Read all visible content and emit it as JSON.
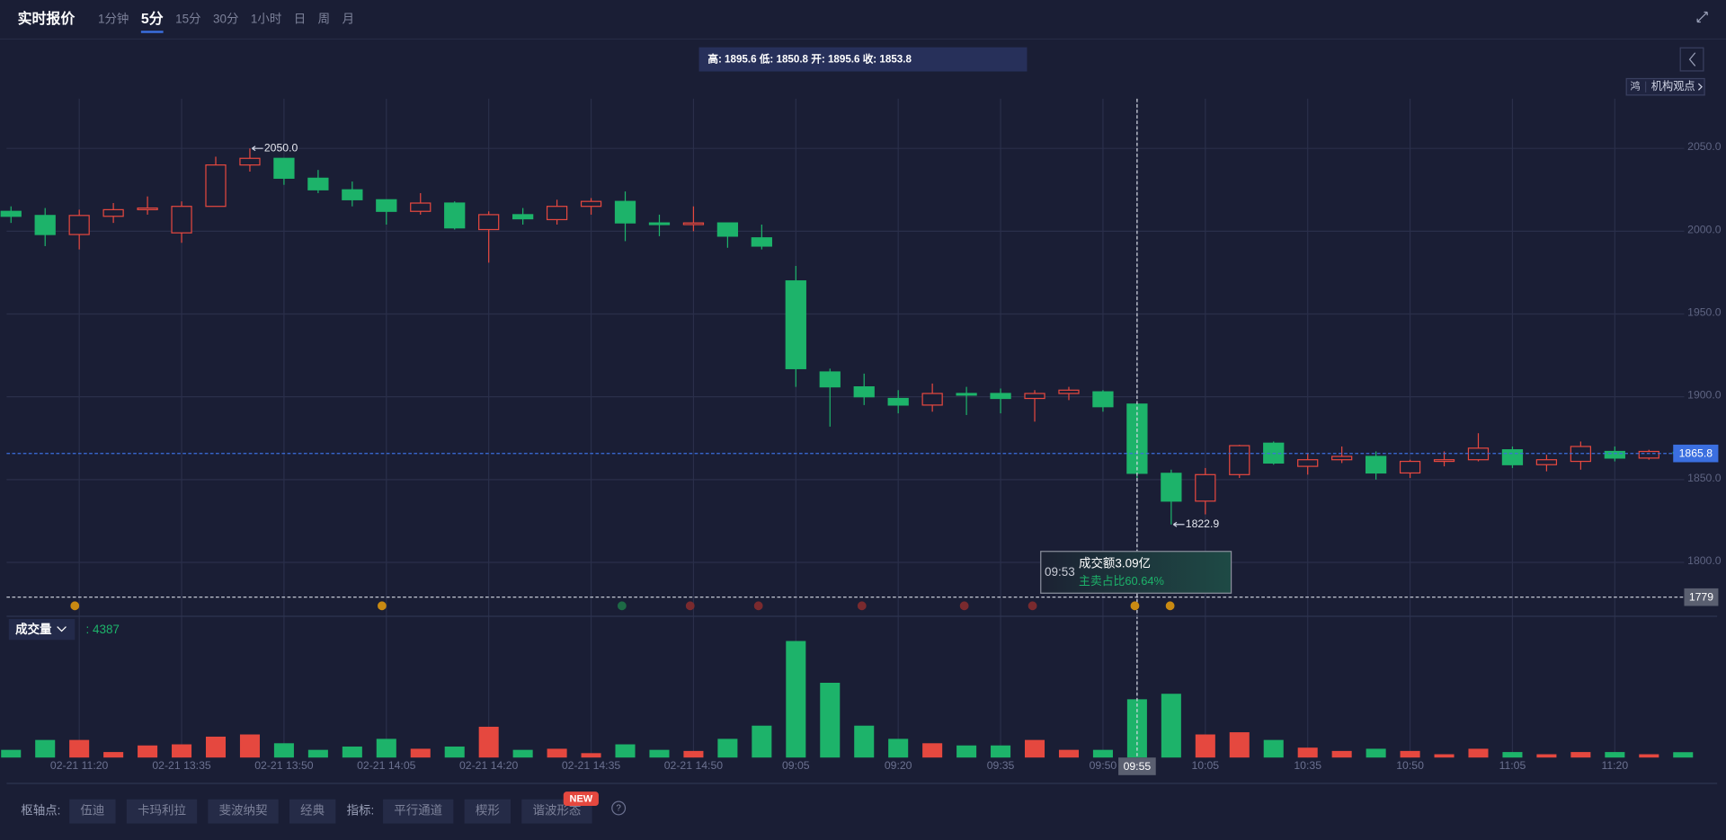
{
  "toolbar": {
    "title": "实时报价",
    "intervals": [
      "1分钟",
      "5分",
      "15分",
      "30分",
      "1小时",
      "日",
      "周",
      "月"
    ],
    "active": "5分"
  },
  "readout": "高: 1895.6 低: 1850.8 开: 1895.6 收: 1853.8",
  "side_panel": {
    "icon": "鸿",
    "label": "机构观点"
  },
  "chart_data": {
    "type": "candlestick",
    "categories": [
      null,
      null,
      "02-21 11:20",
      null,
      null,
      "02-21 13:35",
      null,
      null,
      "02-21 13:50",
      null,
      null,
      "02-21 14:05",
      null,
      null,
      "02-21 14:20",
      null,
      null,
      "02-21 14:35",
      null,
      null,
      "02-21 14:50",
      null,
      null,
      "09:05",
      null,
      null,
      "09:20",
      null,
      null,
      "09:35",
      null,
      null,
      "09:50",
      "09:55",
      null,
      "10:05",
      null,
      null,
      "10:35",
      null,
      null,
      "10:50",
      null,
      null,
      "11:05",
      null,
      null,
      "11:20",
      null,
      null
    ],
    "open": [
      2012,
      2009.5,
      1998,
      2009,
      2013,
      1999,
      2015,
      2040,
      2044,
      2032,
      2025,
      2019,
      2012,
      2017,
      2001,
      2010,
      2007,
      2015,
      2018,
      2005,
      2004,
      2005,
      1996,
      1970,
      1915,
      1906,
      1899,
      1895,
      1902,
      1902,
      1899,
      1902,
      1903,
      1895.6,
      1853.8,
      1837,
      1853,
      1872,
      1858,
      1862,
      1864,
      1854,
      1861,
      1862,
      1868,
      1859,
      1861,
      1867,
      1863,
      1866.5
    ],
    "high": [
      2015,
      2014,
      2013,
      2017,
      2021,
      2018,
      2045,
      2050,
      2044,
      2037,
      2030,
      2019,
      2023,
      2018,
      2012,
      2014,
      2019,
      2020,
      2024,
      2010,
      2015,
      2005,
      2004,
      1979,
      1917,
      1914,
      1904,
      1908,
      1906,
      1905,
      1904,
      1906,
      1904,
      1895.6,
      1856,
      1857,
      1871,
      1873,
      1866,
      1870,
      1867,
      1862,
      1867,
      1878,
      1870,
      1865,
      1873,
      1870,
      1868,
      1867
    ],
    "low": [
      2005,
      1991,
      1989,
      2005,
      2010,
      1993,
      2015,
      2036,
      2028,
      2023,
      2015,
      2004,
      2010,
      2001,
      1981,
      2004,
      2004,
      2010,
      1994,
      1997,
      2000,
      1990,
      1989,
      1906,
      1882,
      1895,
      1890,
      1891,
      1889,
      1890,
      1885,
      1898,
      1891,
      1850.8,
      1822.9,
      1829,
      1851,
      1859,
      1853,
      1860,
      1850,
      1851,
      1858,
      1861,
      1857,
      1855,
      1856,
      1861,
      1862,
      1865
    ],
    "close": [
      2009,
      1998,
      2009.5,
      2013,
      2014,
      2015,
      2040,
      2044,
      2032,
      2025,
      2019,
      2012,
      2017,
      2002,
      2010,
      2007.5,
      2015,
      2018,
      2005,
      2004,
      2005,
      1997,
      1991,
      1917,
      1906,
      1900,
      1895,
      1902,
      1901,
      1899,
      1902,
      1904,
      1894,
      1853.8,
      1837,
      1853,
      1870.5,
      1860,
      1862,
      1864,
      1854,
      1861,
      1862,
      1869,
      1859,
      1862,
      1870,
      1863,
      1867,
      1865.8
    ],
    "up_color": "#e5483f",
    "down_color": "#1db36a",
    "ylim": [
      1768,
      2080
    ],
    "yticks": [
      {
        "value": 1800,
        "label": "1800.0"
      },
      {
        "value": 1850,
        "label": "1850.0"
      },
      {
        "value": 1900,
        "label": "1900.0"
      },
      {
        "value": 1950,
        "label": "1950.0"
      },
      {
        "value": 2000,
        "label": "2000.0"
      },
      {
        "value": 2050,
        "label": "2050.0"
      }
    ],
    "grid": true,
    "max_label": "2050.0",
    "min_label": "1822.9",
    "crosshair": {
      "category": "09:55",
      "y": 1779
    },
    "volume": {
      "label": "成交量",
      "readout": ": 4387",
      "values": [
        6300,
        14400,
        14400,
        4500,
        9900,
        10800,
        17100,
        18900,
        11700,
        6300,
        9000,
        15300,
        7200,
        9000,
        25200,
        6300,
        7200,
        3600,
        10800,
        6300,
        5400,
        15300,
        26100,
        95400,
        61200,
        26100,
        15300,
        11700,
        9900,
        9900,
        14400,
        6300,
        6300,
        47700,
        52200,
        18900,
        20700,
        14400,
        8100,
        5400,
        7200,
        5400,
        2700,
        7200,
        4500,
        2700,
        4500,
        4500,
        2700,
        4387
      ]
    }
  },
  "tooltip": {
    "time": "09:53",
    "lines": [
      "成交额3.09亿",
      "主卖占比60.64%"
    ]
  },
  "bottom_bar": {
    "pivot_label": "枢轴点:",
    "pivots": [
      "伍迪",
      "卡玛利拉",
      "斐波纳契",
      "经典"
    ],
    "indicator_label": "指标:",
    "indicators": [
      "平行通道",
      "楔形",
      "谐波形态"
    ],
    "badge": "NEW"
  }
}
